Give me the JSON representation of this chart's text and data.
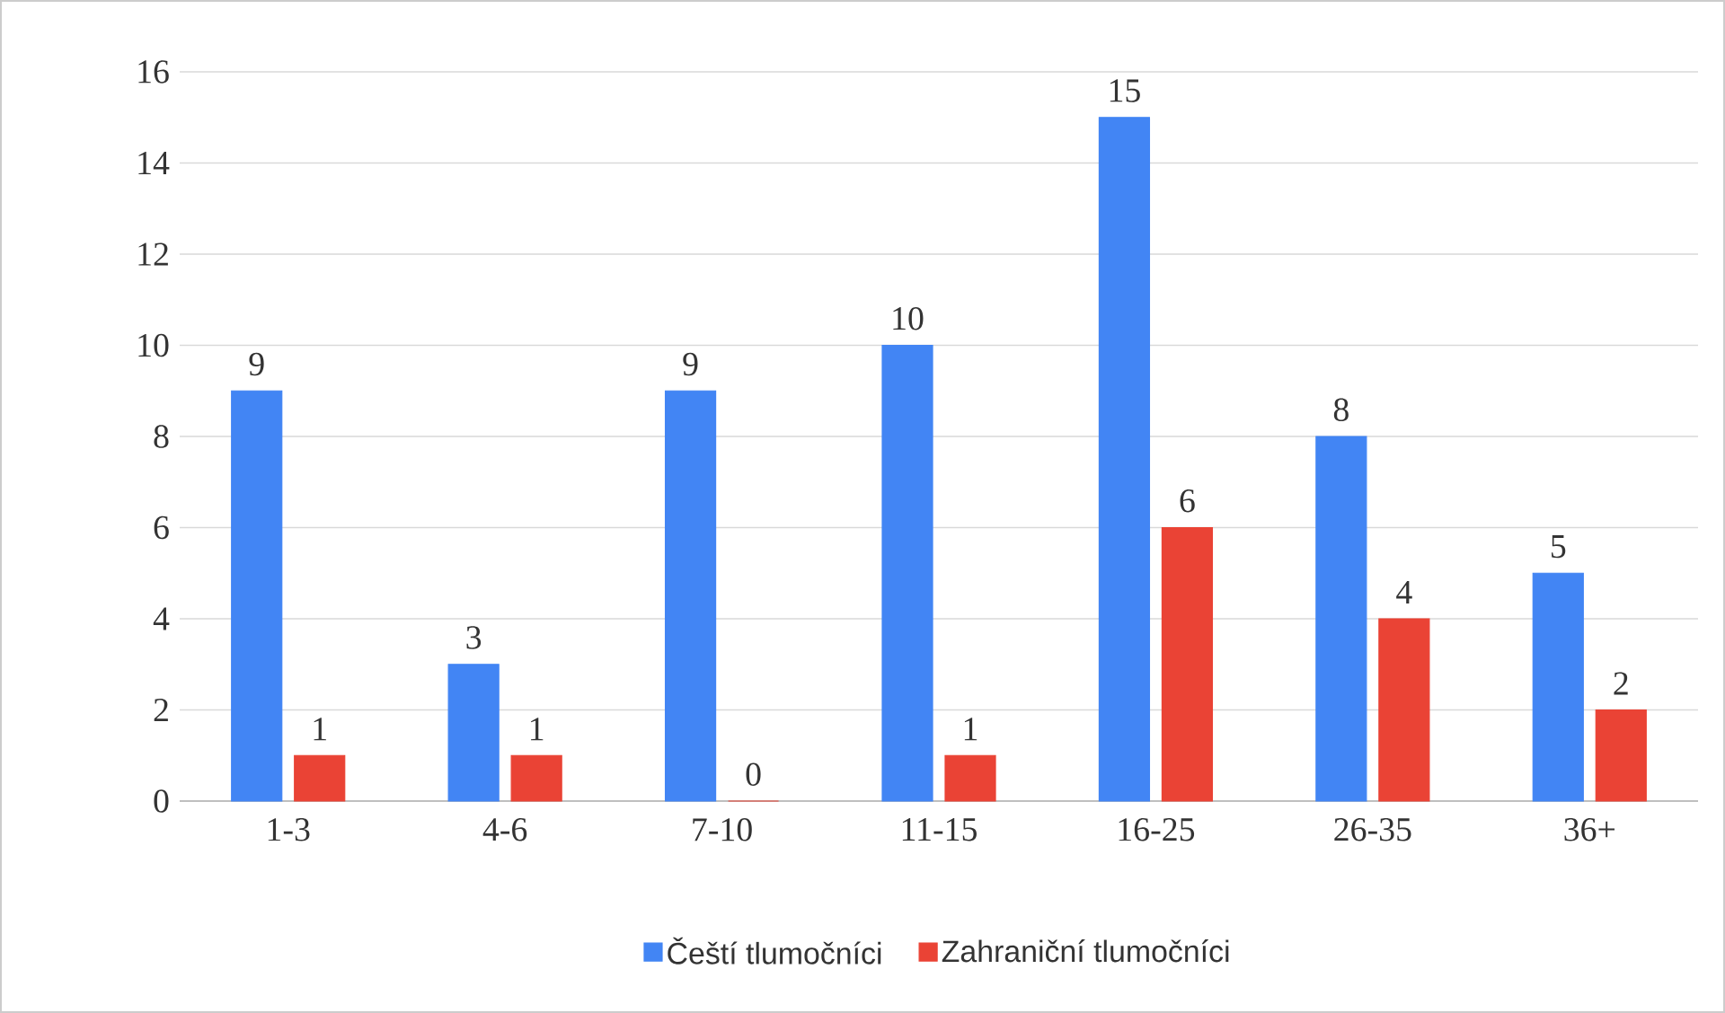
{
  "chart_data": {
    "type": "bar",
    "categories": [
      "1-3",
      "4-6",
      "7-10",
      "11-15",
      "16-25",
      "26-35",
      "36+"
    ],
    "series": [
      {
        "name": "Čeští tlumočníci",
        "color": "#4285f4",
        "values": [
          9,
          3,
          9,
          10,
          15,
          8,
          5
        ]
      },
      {
        "name": "Zahraniční tlumočníci",
        "color": "#ea4335",
        "values": [
          1,
          1,
          0,
          1,
          6,
          4,
          2
        ]
      }
    ],
    "ylim": [
      0,
      16
    ],
    "yticks": [
      0,
      2,
      4,
      6,
      8,
      10,
      12,
      14,
      16
    ],
    "grid": "y",
    "legend": "bottom",
    "data_labels": true
  }
}
